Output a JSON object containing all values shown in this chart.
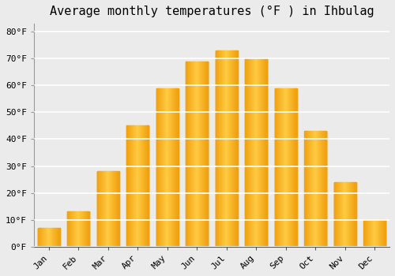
{
  "title": "Average monthly temperatures (°F ) in Ihbulag",
  "months": [
    "Jan",
    "Feb",
    "Mar",
    "Apr",
    "May",
    "Jun",
    "Jul",
    "Aug",
    "Sep",
    "Oct",
    "Nov",
    "Dec"
  ],
  "values": [
    7,
    13,
    28,
    45,
    59,
    69,
    73,
    70,
    59,
    43,
    24,
    10
  ],
  "bar_color_light": "#FFCC44",
  "bar_color_dark": "#F0A020",
  "ylim": [
    0,
    83
  ],
  "yticks": [
    0,
    10,
    20,
    30,
    40,
    50,
    60,
    70,
    80
  ],
  "ytick_labels": [
    "0°F",
    "10°F",
    "20°F",
    "30°F",
    "40°F",
    "50°F",
    "60°F",
    "70°F",
    "80°F"
  ],
  "background_color": "#ebebeb",
  "grid_color": "#ffffff",
  "title_fontsize": 11,
  "tick_fontsize": 8,
  "bar_width": 0.75
}
